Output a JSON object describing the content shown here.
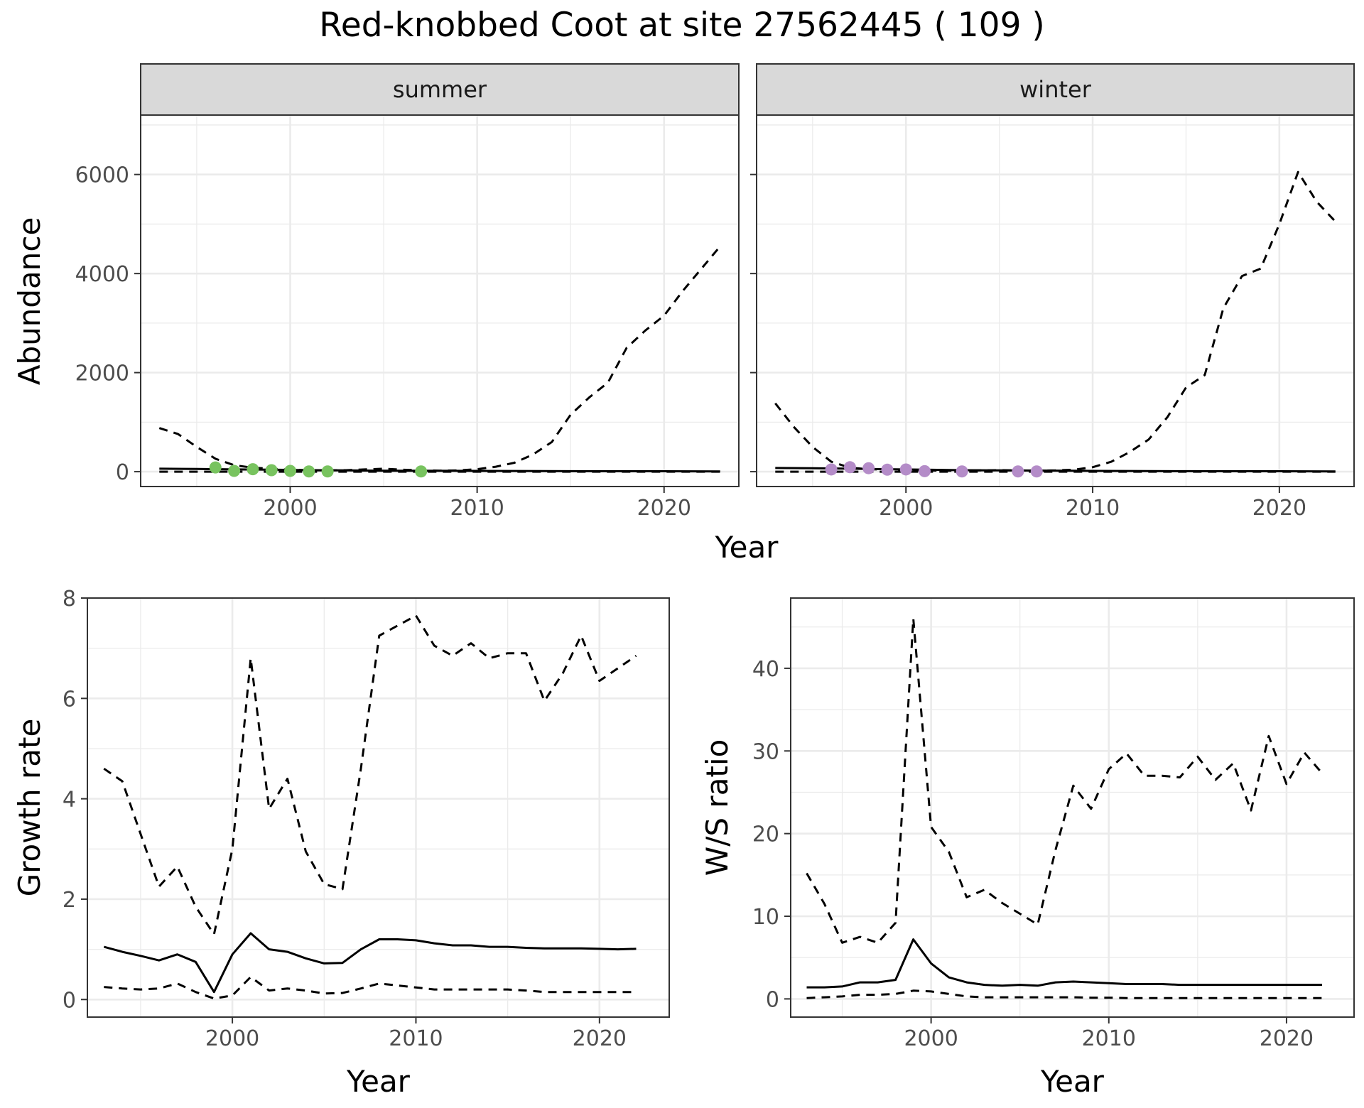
{
  "title": "Red-knobbed Coot at site 27562445 ( 109 )",
  "colors": {
    "summer_points": "#78c35f",
    "winter_points": "#b48cc8",
    "strip_fill": "#d9d9d9",
    "grid": "#ebebeb"
  },
  "chart_data": [
    {
      "id": "summer",
      "type": "line",
      "facet_label": "summer",
      "xlabel": "Year",
      "ylabel": "Abundance",
      "xlim": [
        1992,
        2024
      ],
      "ylim": [
        -300,
        7200
      ],
      "xticks": [
        2000,
        2010,
        2020
      ],
      "yticks": [
        0,
        2000,
        4000,
        6000
      ],
      "grid": true,
      "series": [
        {
          "style": "solid",
          "x": [
            1993,
            1995,
            1997,
            1999,
            2001,
            2003,
            2005,
            2010,
            2015,
            2020,
            2023
          ],
          "y": [
            60,
            55,
            45,
            40,
            30,
            25,
            20,
            15,
            10,
            8,
            5
          ]
        },
        {
          "style": "dashed",
          "x": [
            1993,
            1994,
            1995,
            1996,
            1997,
            1998,
            1999,
            2000,
            2001,
            2002,
            2003,
            2004,
            2005,
            2006,
            2007,
            2008,
            2009,
            2010,
            2011,
            2012,
            2013,
            2014,
            2015,
            2016,
            2017,
            2018,
            2019,
            2020,
            2021,
            2022,
            2023
          ],
          "y": [
            880,
            760,
            500,
            260,
            130,
            80,
            60,
            40,
            30,
            25,
            30,
            45,
            60,
            40,
            25,
            20,
            25,
            50,
            100,
            180,
            350,
            600,
            1150,
            1500,
            1800,
            2500,
            2850,
            3150,
            3650,
            4100,
            4550
          ]
        },
        {
          "style": "dashed",
          "x": [
            1993,
            1996,
            2000,
            2005,
            2010,
            2023
          ],
          "y": [
            0,
            0,
            0,
            0,
            0,
            0
          ]
        },
        {
          "style": "points",
          "x": [
            1996,
            1997,
            1998,
            1999,
            2000,
            2001,
            2002,
            2007
          ],
          "y": [
            85,
            15,
            50,
            30,
            15,
            5,
            5,
            5
          ]
        }
      ]
    },
    {
      "id": "winter",
      "type": "line",
      "facet_label": "winter",
      "xlabel": "Year",
      "ylabel": "",
      "xlim": [
        1992,
        2024
      ],
      "ylim": [
        -300,
        7200
      ],
      "xticks": [
        2000,
        2010,
        2020
      ],
      "yticks": [
        0,
        2000,
        4000,
        6000
      ],
      "grid": true,
      "series": [
        {
          "style": "solid",
          "x": [
            1993,
            1995,
            1997,
            1999,
            2001,
            2003,
            2005,
            2010,
            2015,
            2020,
            2023
          ],
          "y": [
            75,
            70,
            60,
            50,
            40,
            30,
            25,
            15,
            10,
            8,
            5
          ]
        },
        {
          "style": "dashed",
          "x": [
            1993,
            1994,
            1995,
            1996,
            1997,
            1998,
            1999,
            2000,
            2001,
            2002,
            2003,
            2004,
            2005,
            2006,
            2007,
            2008,
            2009,
            2010,
            2011,
            2012,
            2013,
            2014,
            2015,
            2016,
            2017,
            2018,
            2019,
            2020,
            2021,
            2022,
            2023
          ],
          "y": [
            1380,
            900,
            500,
            200,
            80,
            50,
            40,
            30,
            25,
            20,
            20,
            25,
            30,
            25,
            20,
            25,
            40,
            90,
            200,
            400,
            650,
            1100,
            1700,
            1950,
            3300,
            3950,
            4100,
            5000,
            6050,
            5450,
            5050
          ]
        },
        {
          "style": "dashed",
          "x": [
            1993,
            1996,
            2000,
            2005,
            2010,
            2023
          ],
          "y": [
            0,
            0,
            0,
            0,
            0,
            0
          ]
        },
        {
          "style": "points",
          "x": [
            1996,
            1997,
            1998,
            1999,
            2000,
            2001,
            2003,
            2006,
            2007
          ],
          "y": [
            45,
            90,
            70,
            40,
            45,
            10,
            5,
            5,
            5
          ]
        }
      ]
    },
    {
      "id": "growth",
      "type": "line",
      "xlabel": "Year",
      "ylabel": "Growth rate",
      "xlim": [
        1992.1,
        2023.8
      ],
      "ylim": [
        -0.35,
        8
      ],
      "xticks": [
        2000,
        2010,
        2020
      ],
      "yticks": [
        0,
        2,
        4,
        6,
        8
      ],
      "grid": true,
      "series": [
        {
          "style": "solid",
          "x": [
            1993,
            1994,
            1995,
            1996,
            1997,
            1998,
            1999,
            2000,
            2001,
            2002,
            2003,
            2004,
            2005,
            2006,
            2007,
            2008,
            2009,
            2010,
            2011,
            2012,
            2013,
            2014,
            2015,
            2016,
            2017,
            2018,
            2019,
            2020,
            2021,
            2022
          ],
          "y": [
            1.05,
            0.95,
            0.87,
            0.78,
            0.9,
            0.75,
            0.15,
            0.9,
            1.32,
            1.0,
            0.95,
            0.82,
            0.72,
            0.73,
            1.0,
            1.2,
            1.2,
            1.18,
            1.12,
            1.08,
            1.08,
            1.05,
            1.05,
            1.03,
            1.02,
            1.02,
            1.02,
            1.01,
            1.0,
            1.01
          ]
        },
        {
          "style": "dashed",
          "x": [
            1993,
            1994,
            1995,
            1996,
            1997,
            1998,
            1999,
            2000,
            2001,
            2002,
            2003,
            2004,
            2005,
            2006,
            2007,
            2008,
            2009,
            2010,
            2011,
            2012,
            2013,
            2014,
            2015,
            2016,
            2017,
            2018,
            2019,
            2020,
            2021,
            2022
          ],
          "y": [
            4.6,
            4.35,
            3.3,
            2.25,
            2.65,
            1.85,
            1.3,
            3.0,
            6.8,
            3.8,
            4.4,
            2.95,
            2.3,
            2.2,
            4.6,
            7.25,
            7.45,
            7.65,
            7.05,
            6.85,
            7.1,
            6.8,
            6.9,
            6.9,
            5.95,
            6.5,
            7.25,
            6.35,
            6.6,
            6.85
          ]
        },
        {
          "style": "dashed",
          "x": [
            1993,
            1994,
            1995,
            1996,
            1997,
            1998,
            1999,
            2000,
            2001,
            2002,
            2003,
            2004,
            2005,
            2006,
            2007,
            2008,
            2009,
            2010,
            2011,
            2012,
            2013,
            2014,
            2015,
            2016,
            2017,
            2018,
            2019,
            2020,
            2021,
            2022
          ],
          "y": [
            0.25,
            0.22,
            0.2,
            0.22,
            0.32,
            0.15,
            0.02,
            0.08,
            0.45,
            0.18,
            0.22,
            0.18,
            0.12,
            0.13,
            0.22,
            0.32,
            0.28,
            0.24,
            0.2,
            0.2,
            0.2,
            0.2,
            0.2,
            0.18,
            0.15,
            0.15,
            0.15,
            0.15,
            0.15,
            0.15
          ]
        }
      ]
    },
    {
      "id": "ratio",
      "type": "line",
      "xlabel": "Year",
      "ylabel": "W/S ratio",
      "xlim": [
        1992.1,
        2023.8
      ],
      "ylim": [
        -2.2,
        48.5
      ],
      "xticks": [
        2000,
        2010,
        2020
      ],
      "yticks": [
        0,
        10,
        20,
        30,
        40
      ],
      "grid": true,
      "series": [
        {
          "style": "solid",
          "x": [
            1993,
            1994,
            1995,
            1996,
            1997,
            1998,
            1999,
            2000,
            2001,
            2002,
            2003,
            2004,
            2005,
            2006,
            2007,
            2008,
            2009,
            2010,
            2011,
            2012,
            2013,
            2014,
            2015,
            2016,
            2017,
            2018,
            2019,
            2020,
            2021,
            2022
          ],
          "y": [
            1.4,
            1.4,
            1.5,
            2.0,
            2.0,
            2.3,
            7.2,
            4.3,
            2.6,
            2.0,
            1.7,
            1.6,
            1.7,
            1.6,
            2.0,
            2.1,
            2.0,
            1.9,
            1.8,
            1.8,
            1.8,
            1.7,
            1.7,
            1.7,
            1.7,
            1.7,
            1.7,
            1.7,
            1.7,
            1.7
          ]
        },
        {
          "style": "dashed",
          "x": [
            1993,
            1994,
            1995,
            1996,
            1997,
            1998,
            1999,
            2000,
            2001,
            2002,
            2003,
            2004,
            2005,
            2006,
            2007,
            2008,
            2009,
            2010,
            2011,
            2012,
            2013,
            2014,
            2015,
            2016,
            2017,
            2018,
            2019,
            2020,
            2021,
            2022
          ],
          "y": [
            15.2,
            11.5,
            6.8,
            7.5,
            6.8,
            9.2,
            46.0,
            20.8,
            17.8,
            12.3,
            13.2,
            11.6,
            10.3,
            9.0,
            18.0,
            25.8,
            23.0,
            27.8,
            29.7,
            27.0,
            27.0,
            26.8,
            29.3,
            26.5,
            28.5,
            22.8,
            31.8,
            26.0,
            29.8,
            27.3
          ]
        },
        {
          "style": "dashed",
          "x": [
            1993,
            1994,
            1995,
            1996,
            1997,
            1998,
            1999,
            2000,
            2001,
            2002,
            2003,
            2004,
            2005,
            2006,
            2007,
            2008,
            2009,
            2010,
            2011,
            2012,
            2013,
            2014,
            2015,
            2016,
            2017,
            2018,
            2019,
            2020,
            2021,
            2022
          ],
          "y": [
            0.1,
            0.2,
            0.3,
            0.5,
            0.5,
            0.6,
            1.0,
            0.9,
            0.6,
            0.3,
            0.2,
            0.2,
            0.2,
            0.2,
            0.2,
            0.2,
            0.15,
            0.15,
            0.1,
            0.1,
            0.1,
            0.1,
            0.1,
            0.1,
            0.1,
            0.1,
            0.1,
            0.1,
            0.1,
            0.1
          ]
        }
      ]
    }
  ]
}
